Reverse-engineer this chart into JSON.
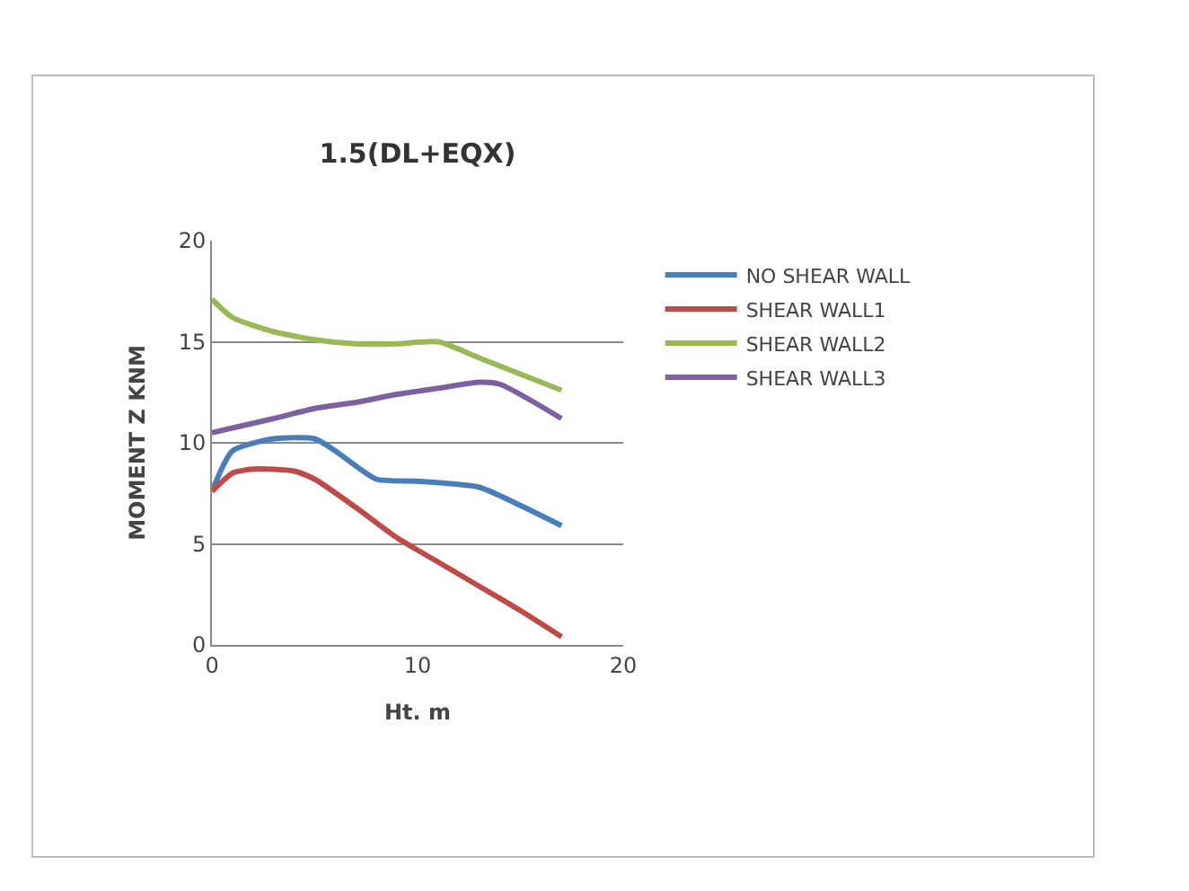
{
  "chart_data": {
    "type": "line",
    "title": "1.5(DL+EQX)",
    "xlabel": "Ht. m",
    "ylabel": "MOMENT Z KNM",
    "xlim": [
      0,
      20
    ],
    "xticks": [
      0,
      10,
      20
    ],
    "ylim": [
      0,
      20
    ],
    "yticks": [
      0,
      5,
      10,
      15,
      20
    ],
    "grid": "y",
    "legend": "right",
    "marker": "none",
    "line_style": "solid",
    "series": [
      {
        "name": "NO SHEAR WALL",
        "color": "#4a7ebb",
        "x": [
          0,
          1,
          3,
          5,
          6,
          8,
          10,
          13,
          15,
          17
        ],
        "values": [
          7.6,
          9.6,
          10.2,
          10.2,
          9.6,
          8.2,
          8.1,
          7.8,
          6.9,
          5.9
        ]
      },
      {
        "name": "SHEAR WALL1",
        "color": "#be4b48",
        "x": [
          0,
          1,
          2,
          4,
          5,
          7,
          9,
          11,
          13,
          15,
          17
        ],
        "values": [
          7.6,
          8.5,
          8.7,
          8.6,
          8.2,
          6.8,
          5.3,
          4.1,
          2.9,
          1.7,
          0.4
        ]
      },
      {
        "name": "SHEAR WALL2",
        "color": "#98b954",
        "x": [
          0,
          1,
          3,
          5,
          7,
          9,
          11,
          13,
          15,
          17
        ],
        "values": [
          17.1,
          16.2,
          15.5,
          15.1,
          14.9,
          14.9,
          15.0,
          14.2,
          13.4,
          12.6
        ]
      },
      {
        "name": "SHEAR WALL3",
        "color": "#7d60a0",
        "x": [
          0,
          3,
          5,
          7,
          9,
          11,
          13,
          14,
          17
        ],
        "values": [
          10.5,
          11.2,
          11.7,
          12.0,
          12.4,
          12.7,
          13.0,
          12.9,
          11.2
        ]
      }
    ]
  }
}
